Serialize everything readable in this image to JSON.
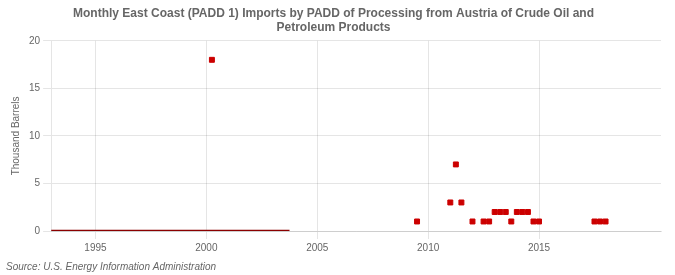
{
  "chart_data": {
    "type": "scatter",
    "title": "Monthly East Coast (PADD 1) Imports by PADD of Processing from Austria of Crude Oil and\nPetroleum Products",
    "ylabel": "Thousand Barrels",
    "source": "Source: U.S. Energy Information Administration",
    "xlim": [
      1993.0,
      2020.5
    ],
    "xticks": [
      1995,
      2000,
      2005,
      2010,
      2015
    ],
    "ylim": [
      0,
      20
    ],
    "yticks": [
      0,
      5,
      10,
      15,
      20
    ],
    "grid": true,
    "series": [
      {
        "type": "line",
        "color": "#8b0000",
        "line_style": "solid",
        "x": [
          1993.0,
          2003.75
        ],
        "values": [
          0,
          0
        ]
      },
      {
        "type": "scatter",
        "color": "#cc0000",
        "marker": "square",
        "x": [
          2000.25,
          2009.5,
          2011.0,
          2011.25,
          2011.5,
          2012.0,
          2012.5,
          2012.75,
          2013.0,
          2013.25,
          2013.5,
          2013.75,
          2014.0,
          2014.25,
          2014.5,
          2014.75,
          2015.0,
          2017.5,
          2017.75,
          2018.0
        ],
        "values": [
          18,
          1,
          3,
          7,
          3,
          1,
          1,
          1,
          2,
          2,
          2,
          1,
          2,
          2,
          2,
          1,
          1,
          1,
          1,
          1
        ]
      }
    ]
  }
}
